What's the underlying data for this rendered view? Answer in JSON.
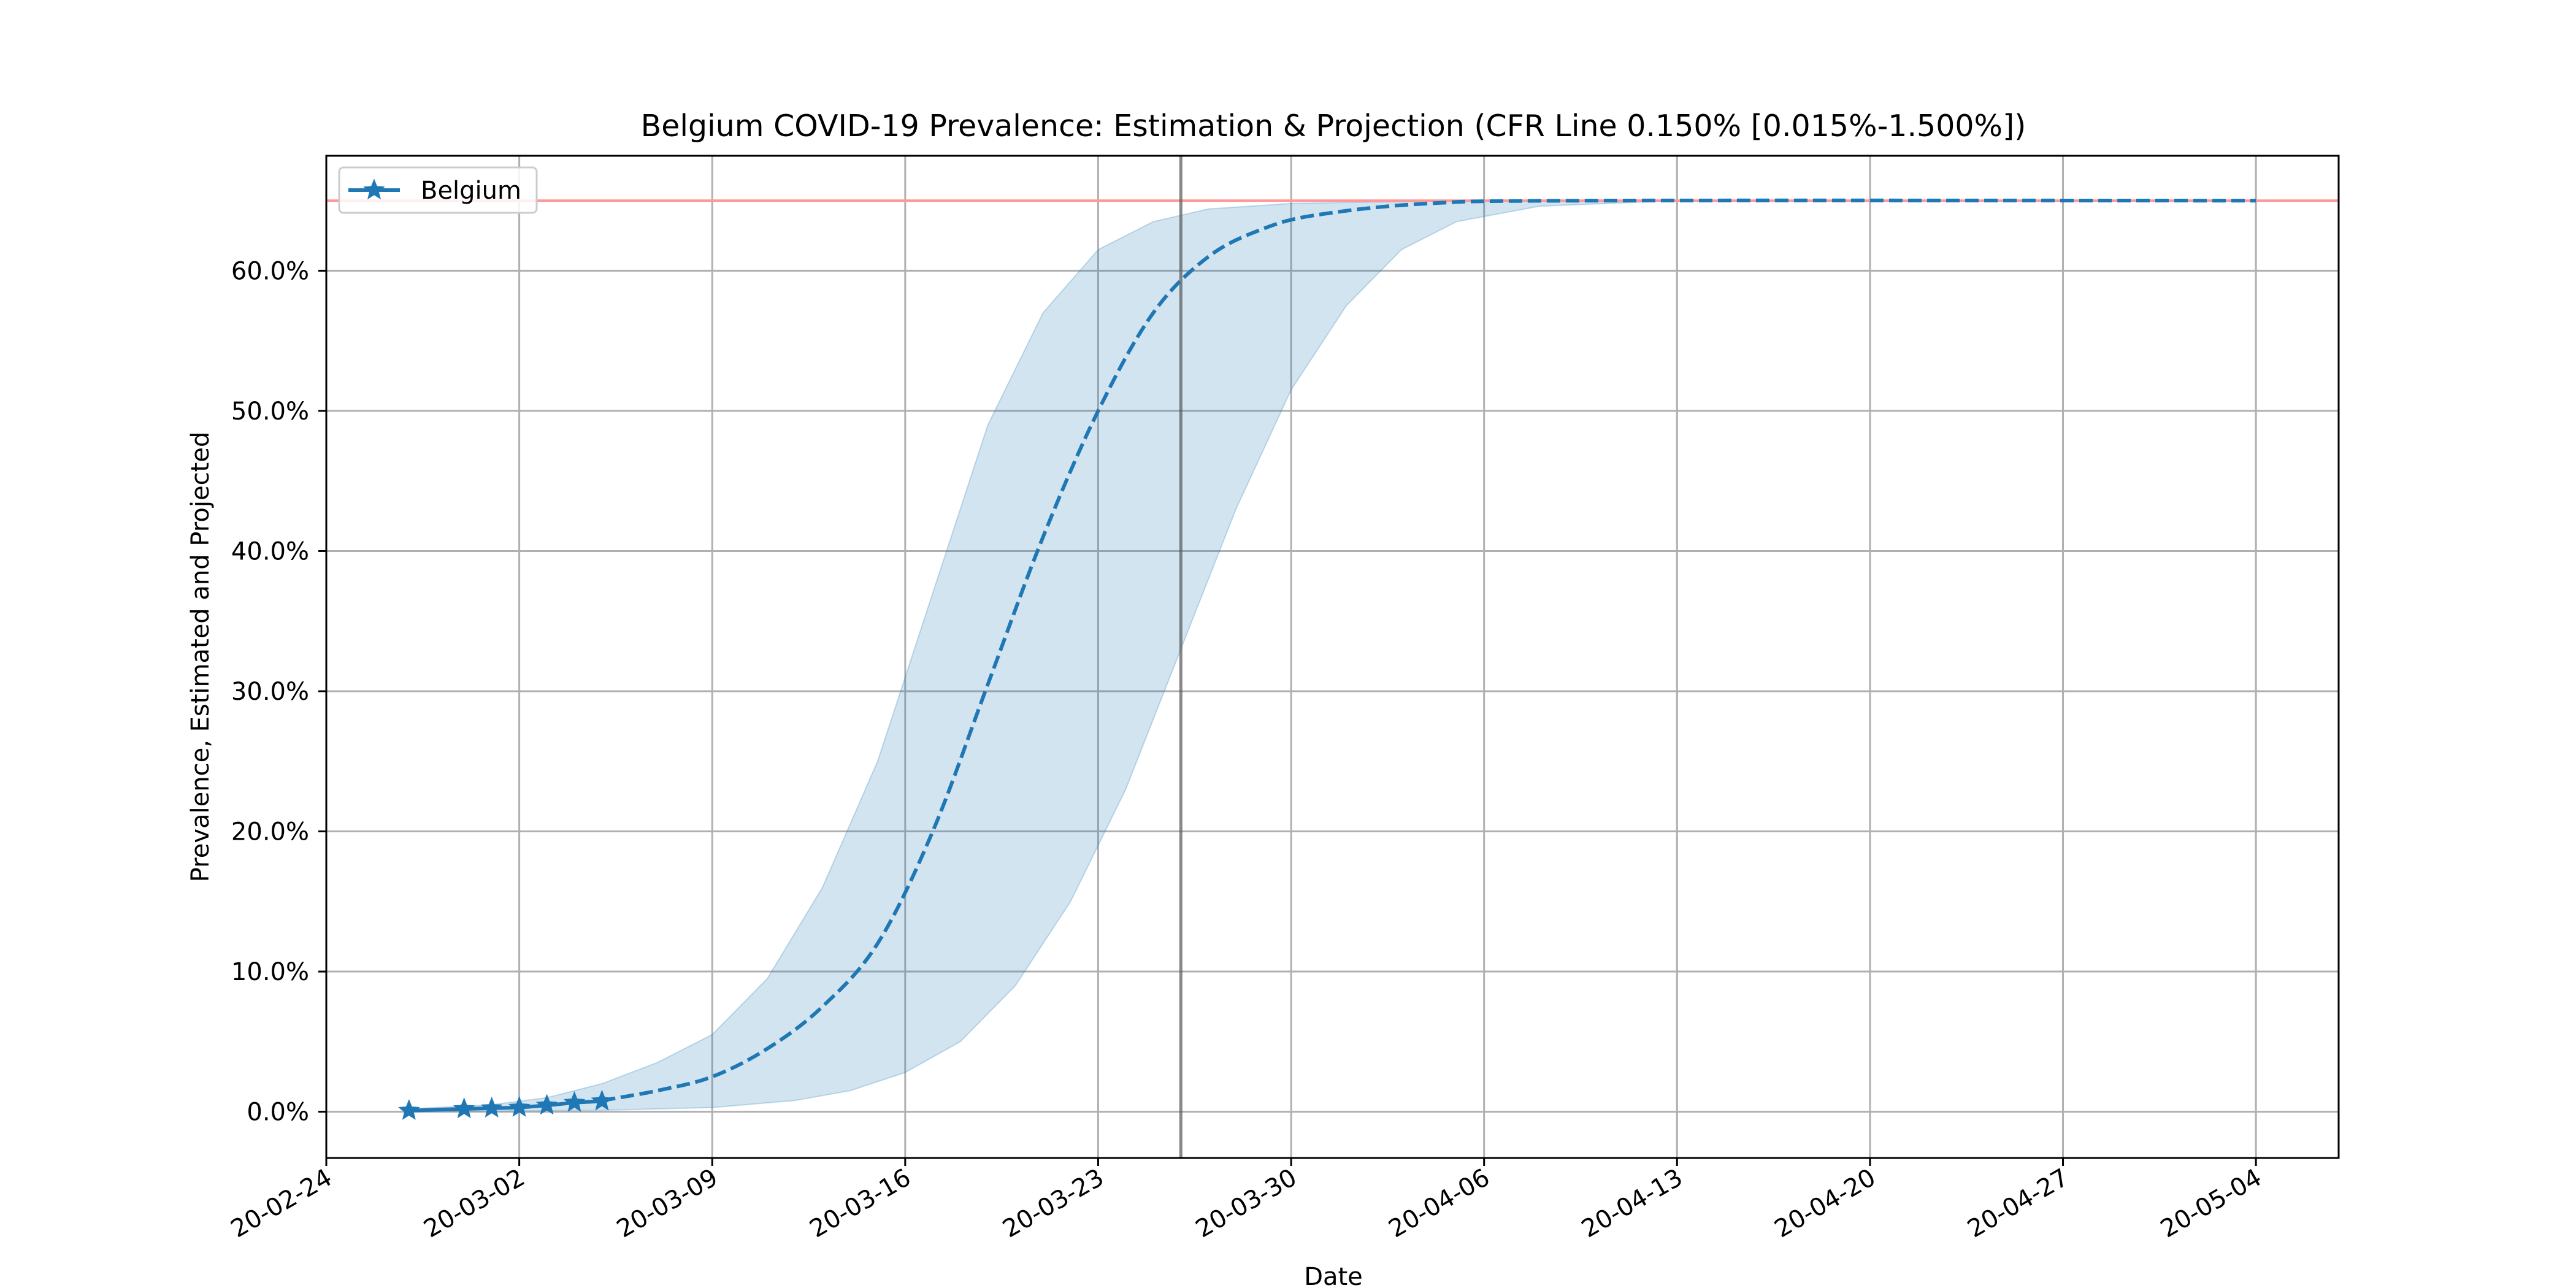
{
  "chart_data": {
    "type": "line",
    "title": "Belgium COVID-19 Prevalence: Estimation & Projection (CFR Line 0.150% [0.015%-1.500%])",
    "xlabel": "Date",
    "ylabel": "Prevalence, Estimated and Projected",
    "x_range": [
      "2020-02-24",
      "2020-05-07"
    ],
    "ylim": [
      -3.3,
      68.2
    ],
    "x_ticks": [
      {
        "date": "2020-02-24",
        "label": "20-02-24"
      },
      {
        "date": "2020-03-02",
        "label": "20-03-02"
      },
      {
        "date": "2020-03-09",
        "label": "20-03-09"
      },
      {
        "date": "2020-03-16",
        "label": "20-03-16"
      },
      {
        "date": "2020-03-23",
        "label": "20-03-23"
      },
      {
        "date": "2020-03-30",
        "label": "20-03-30"
      },
      {
        "date": "2020-04-06",
        "label": "20-04-06"
      },
      {
        "date": "2020-04-13",
        "label": "20-04-13"
      },
      {
        "date": "2020-04-20",
        "label": "20-04-20"
      },
      {
        "date": "2020-04-27",
        "label": "20-04-27"
      },
      {
        "date": "2020-05-04",
        "label": "20-05-04"
      }
    ],
    "y_ticks": [
      {
        "value": 0,
        "label": "0.0%"
      },
      {
        "value": 10,
        "label": "10.0%"
      },
      {
        "value": 20,
        "label": "20.0%"
      },
      {
        "value": 30,
        "label": "30.0%"
      },
      {
        "value": 40,
        "label": "40.0%"
      },
      {
        "value": 50,
        "label": "50.0%"
      },
      {
        "value": 60,
        "label": "60.0%"
      }
    ],
    "grid": true,
    "legend": {
      "position": "top-left",
      "entries": [
        "Belgium"
      ]
    },
    "colors": {
      "series": "#1f77b4",
      "band": "#1f77b4",
      "saturation_line": "#ff9999",
      "today_line": "#555555",
      "grid": "#b0b0b0"
    },
    "series": [
      {
        "name": "Belgium",
        "style": "solid-star",
        "points": [
          {
            "date": "2020-02-27",
            "y": 0.08
          },
          {
            "date": "2020-02-29",
            "y": 0.2
          },
          {
            "date": "2020-03-01",
            "y": 0.25
          },
          {
            "date": "2020-03-02",
            "y": 0.3
          },
          {
            "date": "2020-03-03",
            "y": 0.45
          },
          {
            "date": "2020-03-04",
            "y": 0.65
          },
          {
            "date": "2020-03-05",
            "y": 0.75
          }
        ]
      }
    ],
    "projection": {
      "style": "dashed",
      "points": [
        {
          "date": "2020-03-05",
          "y": 0.8
        },
        {
          "date": "2020-03-07",
          "y": 1.5
        },
        {
          "date": "2020-03-09",
          "y": 2.5
        },
        {
          "date": "2020-03-11",
          "y": 4.5
        },
        {
          "date": "2020-03-13",
          "y": 7.5
        },
        {
          "date": "2020-03-15",
          "y": 12.0
        },
        {
          "date": "2020-03-17",
          "y": 20.0
        },
        {
          "date": "2020-03-19",
          "y": 30.5
        },
        {
          "date": "2020-03-21",
          "y": 41.0
        },
        {
          "date": "2020-03-23",
          "y": 50.0
        },
        {
          "date": "2020-03-25",
          "y": 57.0
        },
        {
          "date": "2020-03-27",
          "y": 61.0
        },
        {
          "date": "2020-03-29",
          "y": 63.0
        },
        {
          "date": "2020-03-31",
          "y": 64.0
        },
        {
          "date": "2020-04-04",
          "y": 64.8
        },
        {
          "date": "2020-04-10",
          "y": 65.0
        },
        {
          "date": "2020-05-04",
          "y": 65.0
        }
      ]
    },
    "confidence_band": {
      "upper": [
        {
          "date": "2020-02-27",
          "y": 0.2
        },
        {
          "date": "2020-03-01",
          "y": 0.5
        },
        {
          "date": "2020-03-03",
          "y": 1.0
        },
        {
          "date": "2020-03-05",
          "y": 2.0
        },
        {
          "date": "2020-03-07",
          "y": 3.5
        },
        {
          "date": "2020-03-09",
          "y": 5.5
        },
        {
          "date": "2020-03-11",
          "y": 9.5
        },
        {
          "date": "2020-03-13",
          "y": 16.0
        },
        {
          "date": "2020-03-15",
          "y": 25.0
        },
        {
          "date": "2020-03-17",
          "y": 37.0
        },
        {
          "date": "2020-03-19",
          "y": 49.0
        },
        {
          "date": "2020-03-21",
          "y": 57.0
        },
        {
          "date": "2020-03-23",
          "y": 61.5
        },
        {
          "date": "2020-03-25",
          "y": 63.5
        },
        {
          "date": "2020-03-27",
          "y": 64.4
        },
        {
          "date": "2020-03-30",
          "y": 64.8
        },
        {
          "date": "2020-04-05",
          "y": 65.0
        },
        {
          "date": "2020-05-04",
          "y": 65.0
        }
      ],
      "lower": [
        {
          "date": "2020-02-27",
          "y": 0.0
        },
        {
          "date": "2020-03-05",
          "y": 0.1
        },
        {
          "date": "2020-03-09",
          "y": 0.3
        },
        {
          "date": "2020-03-12",
          "y": 0.8
        },
        {
          "date": "2020-03-14",
          "y": 1.5
        },
        {
          "date": "2020-03-16",
          "y": 2.8
        },
        {
          "date": "2020-03-18",
          "y": 5.0
        },
        {
          "date": "2020-03-20",
          "y": 9.0
        },
        {
          "date": "2020-03-22",
          "y": 15.0
        },
        {
          "date": "2020-03-24",
          "y": 23.0
        },
        {
          "date": "2020-03-26",
          "y": 33.0
        },
        {
          "date": "2020-03-28",
          "y": 43.0
        },
        {
          "date": "2020-03-30",
          "y": 51.5
        },
        {
          "date": "2020-04-01",
          "y": 57.5
        },
        {
          "date": "2020-04-03",
          "y": 61.5
        },
        {
          "date": "2020-04-05",
          "y": 63.5
        },
        {
          "date": "2020-04-08",
          "y": 64.6
        },
        {
          "date": "2020-04-13",
          "y": 65.0
        },
        {
          "date": "2020-05-04",
          "y": 65.0
        }
      ]
    },
    "saturation_line": {
      "y": 65.0
    },
    "today_line": {
      "date": "2020-03-26"
    }
  }
}
